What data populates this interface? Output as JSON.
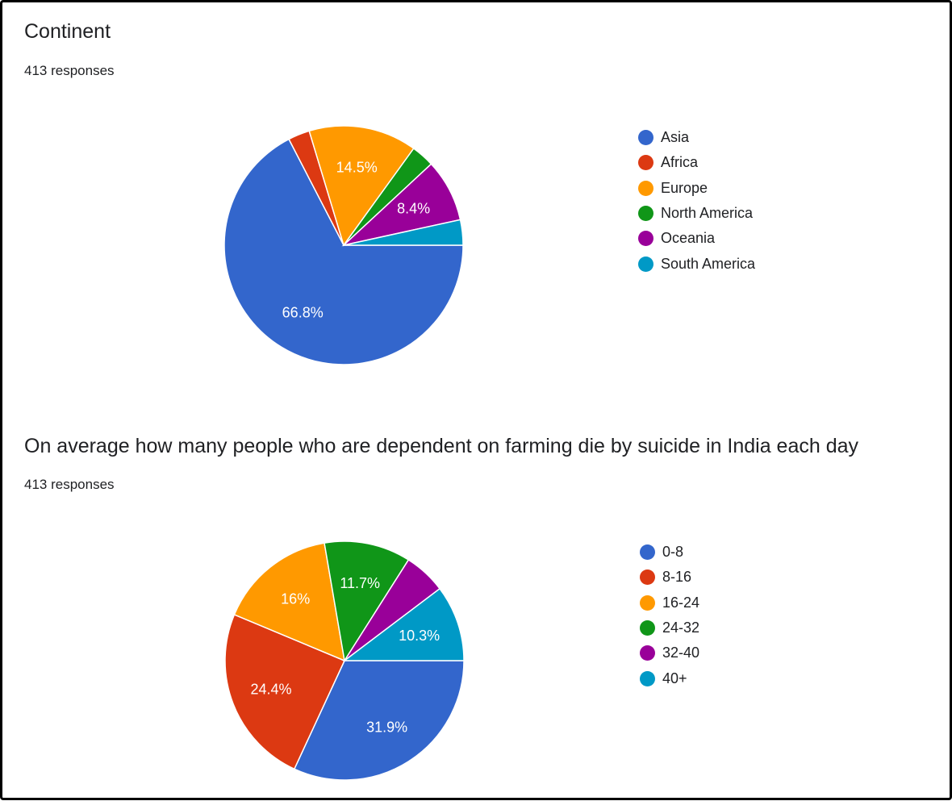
{
  "chart_data": [
    {
      "type": "pie",
      "title": "Continent",
      "subtitle": "413 responses",
      "legend_position": "right",
      "categories": [
        "Asia",
        "Africa",
        "Europe",
        "North America",
        "Oceania",
        "South America"
      ],
      "values": [
        66.8,
        2.9,
        14.5,
        3.1,
        8.4,
        3.4
      ],
      "labels": [
        "66.8%",
        "",
        "14.5%",
        "",
        "8.4%",
        ""
      ],
      "colors": [
        "#3366cc",
        "#dc3912",
        "#ff9900",
        "#109618",
        "#990099",
        "#0099c6"
      ]
    },
    {
      "type": "pie",
      "title": "On average how many people who are dependent on farming die by suicide in India each day",
      "subtitle": "413 responses",
      "legend_position": "right",
      "categories": [
        "0-8",
        "8-16",
        "16-24",
        "24-32",
        "32-40",
        "40+"
      ],
      "values": [
        31.9,
        24.4,
        16.0,
        11.7,
        5.7,
        10.3
      ],
      "labels": [
        "31.9%",
        "24.4%",
        "16%",
        "11.7%",
        "",
        "10.3%"
      ],
      "colors": [
        "#3366cc",
        "#dc3912",
        "#ff9900",
        "#109618",
        "#990099",
        "#0099c6"
      ]
    }
  ]
}
